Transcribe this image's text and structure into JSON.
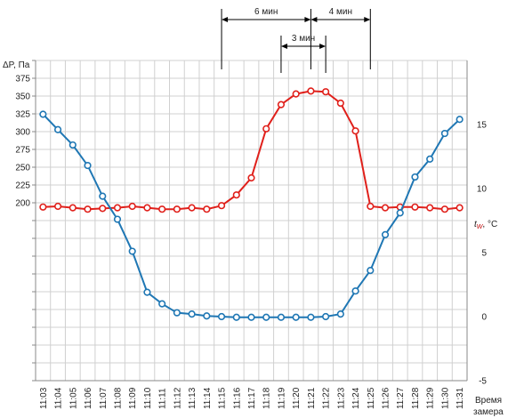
{
  "chart_data": {
    "type": "line",
    "ylabel_left_main": "ΔP",
    "ylabel_left_unit": ", Па",
    "ylabel_right_main": "t",
    "ylabel_right_sub": "W",
    "ylabel_right_unit": ", °C",
    "xlabel_line1": "Время",
    "xlabel_line2": "замера",
    "x": [
      "11:03",
      "11:04",
      "11:05",
      "11:06",
      "11:07",
      "11:08",
      "11:09",
      "11:10",
      "11:11",
      "11:12",
      "11:13",
      "11:14",
      "11:15",
      "11:16",
      "11:17",
      "11:18",
      "11:19",
      "11:20",
      "11:21",
      "11:22",
      "11:23",
      "11:24",
      "11:25",
      "11:26",
      "11:27",
      "11:28",
      "11:29",
      "11:30",
      "11:31"
    ],
    "y_left_ticks": [
      200,
      225,
      250,
      275,
      300,
      325,
      350,
      375
    ],
    "y_right_ticks": [
      15,
      10,
      5,
      0,
      -5
    ],
    "ylim_right": [
      -5,
      20
    ],
    "series": [
      {
        "axis": "left",
        "color": "#e0201b",
        "values": [
          194,
          195,
          193,
          191,
          192,
          193,
          195,
          193,
          191,
          191,
          193,
          191,
          196,
          211,
          235,
          304,
          338,
          353,
          357,
          356,
          340,
          301,
          195,
          193,
          194,
          194,
          193,
          191,
          193
        ]
      },
      {
        "axis": "right",
        "color": "#1f77b4",
        "values": [
          15.8,
          14.6,
          13.4,
          11.8,
          9.4,
          7.6,
          5.1,
          1.9,
          1.0,
          0.3,
          0.2,
          0.05,
          0.0,
          -0.05,
          -0.05,
          -0.05,
          -0.05,
          -0.05,
          -0.05,
          0.0,
          0.2,
          2.0,
          3.6,
          6.4,
          8.1,
          10.9,
          12.3,
          14.3,
          15.4
        ]
      }
    ],
    "annotations": [
      {
        "label": "6 мин",
        "from": "11:15",
        "to": "11:21"
      },
      {
        "label": "4 мин",
        "from": "11:21",
        "to": "11:25"
      },
      {
        "label": "3 мин",
        "from": "11:19",
        "to": "11:22"
      }
    ],
    "grid": true
  }
}
